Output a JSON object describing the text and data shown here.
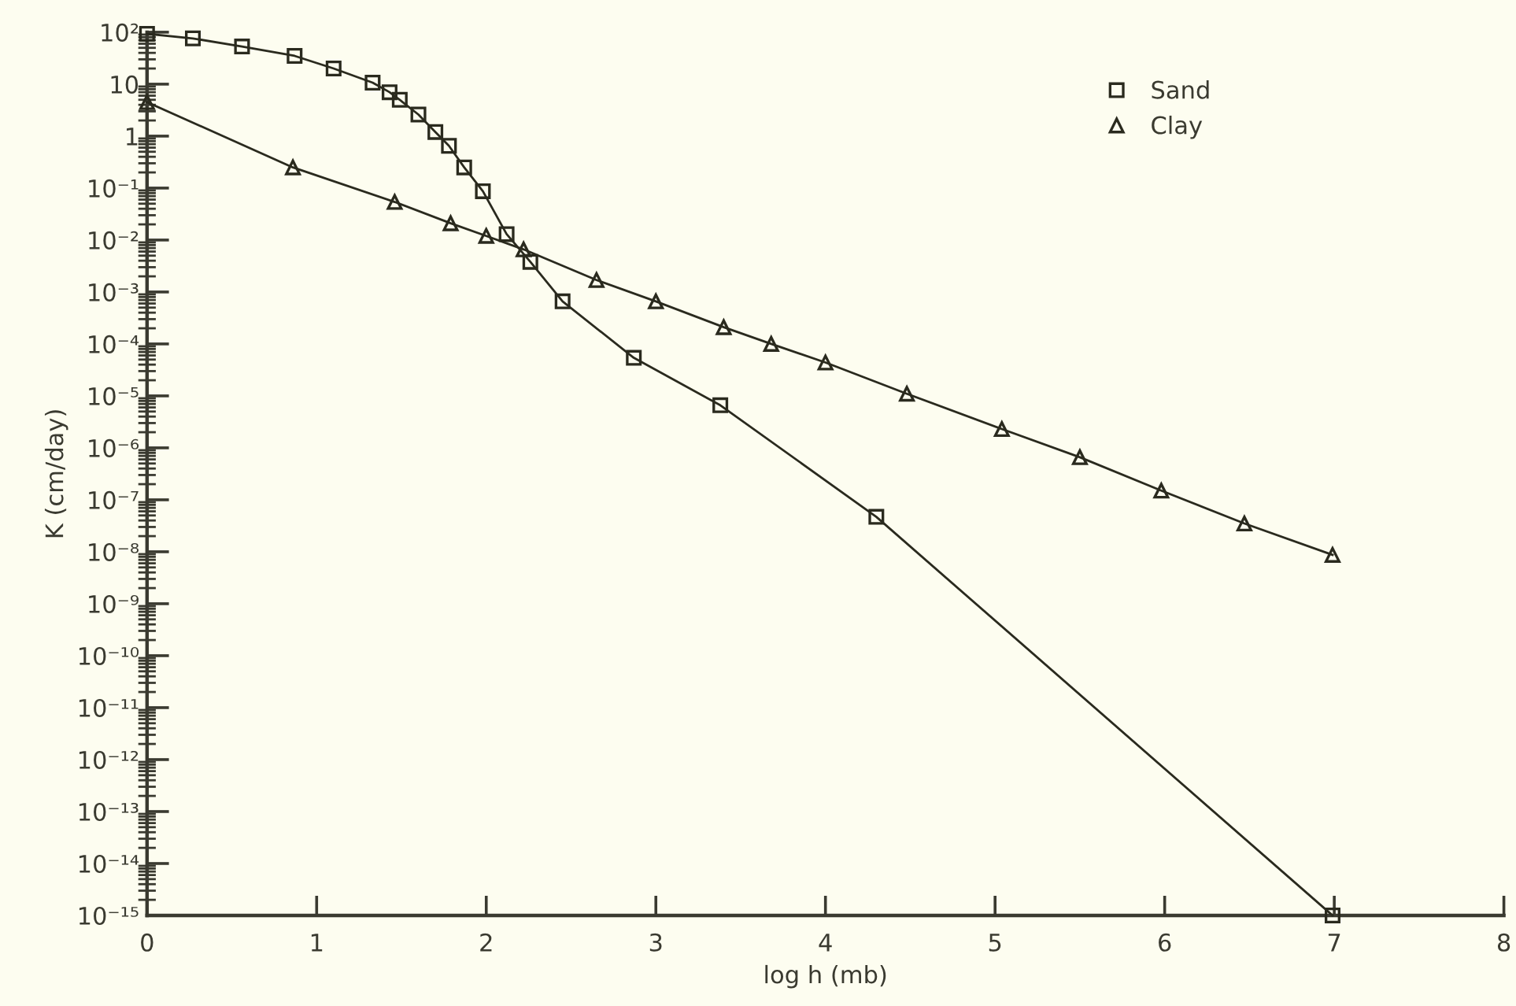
{
  "chart_data": {
    "type": "line",
    "xlabel": "log h (mb)",
    "ylabel": "K (cm/day)",
    "log": "y",
    "xlim": [
      0,
      8
    ],
    "xticks": [
      0,
      1,
      2,
      3,
      4,
      5,
      6,
      7,
      8
    ],
    "ylim": [
      1e-15,
      100
    ],
    "yticks": [
      {
        "value": 100,
        "label": "10²"
      },
      {
        "value": 10,
        "label": "10"
      },
      {
        "value": 1,
        "label": "1"
      },
      {
        "value": 0.1,
        "label": "10⁻¹"
      },
      {
        "value": 0.01,
        "label": "10⁻²"
      },
      {
        "value": 0.001,
        "label": "10⁻³"
      },
      {
        "value": 0.0001,
        "label": "10⁻⁴"
      },
      {
        "value": 1e-05,
        "label": "10⁻⁵"
      },
      {
        "value": 1e-06,
        "label": "10⁻⁶"
      },
      {
        "value": 1e-07,
        "label": "10⁻⁷"
      },
      {
        "value": 1e-08,
        "label": "10⁻⁸"
      },
      {
        "value": 1e-09,
        "label": "10⁻⁹"
      },
      {
        "value": 1e-10,
        "label": "10⁻¹⁰"
      },
      {
        "value": 1e-11,
        "label": "10⁻¹¹"
      },
      {
        "value": 1e-12,
        "label": "10⁻¹²"
      },
      {
        "value": 1e-13,
        "label": "10⁻¹³"
      },
      {
        "value": 1e-14,
        "label": "10⁻¹⁴"
      },
      {
        "value": 1e-15,
        "label": "10⁻¹⁵"
      }
    ],
    "legend": "top right",
    "line_style": "solid",
    "series": [
      {
        "name": "Sand",
        "color": "#2a2a1e",
        "marker": "square",
        "x": [
          0,
          0.27,
          0.56,
          0.87,
          1.1,
          1.33,
          1.43,
          1.49,
          1.6,
          1.7,
          1.78,
          1.87,
          1.98,
          2.12,
          2.26,
          2.45,
          2.87,
          3.38,
          4.3,
          6.99
        ],
        "values": [
          93,
          76,
          53,
          35,
          20,
          10.7,
          7,
          5,
          2.6,
          1.2,
          0.65,
          0.25,
          0.087,
          0.013,
          0.0038,
          0.00066,
          5.4e-05,
          6.6e-06,
          4.7e-08,
          1e-15
        ]
      },
      {
        "name": "Clay",
        "color": "#2a2a1e",
        "marker": "triangle",
        "x": [
          0,
          0.86,
          1.46,
          1.79,
          2.0,
          2.22,
          2.65,
          3.0,
          3.4,
          3.68,
          4.0,
          4.48,
          5.04,
          5.5,
          5.98,
          6.47,
          6.99
        ],
        "values": [
          4.5,
          0.25,
          0.054,
          0.021,
          0.012,
          0.0066,
          0.0017,
          0.00066,
          0.00021,
          0.0001,
          4.4e-05,
          1.1e-05,
          2.3e-06,
          6.6e-07,
          1.5e-07,
          3.5e-08,
          8.7e-09
        ]
      }
    ]
  }
}
